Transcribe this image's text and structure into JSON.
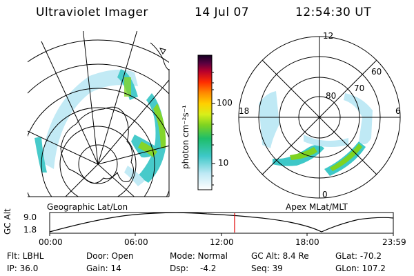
{
  "header": {
    "instrument": "Ultraviolet Imager",
    "date": "14 Jul 07",
    "time": "12:54:30 UT"
  },
  "colors": {
    "accent_line": "#e00000",
    "aurora_low": "#bfe9f5",
    "aurora_mid": "#3ec8c8",
    "aurora_high": "#7ed321"
  },
  "left_panel": {
    "label": "Geographic Lat/Lon"
  },
  "right_panel": {
    "label": "Apex MLat/MLT",
    "lat_labels": [
      "80",
      "70",
      "60"
    ],
    "mlt_labels": {
      "top": "12",
      "left": "18",
      "right": "6",
      "bottom": "0"
    }
  },
  "colorbar": {
    "unit": "photon cm⁻²s⁻¹",
    "ticks": [
      "100",
      "10"
    ]
  },
  "timeline": {
    "ylabel": "GC Alt",
    "y_ticks": [
      "9.0",
      "1.8"
    ],
    "x_ticks": [
      "00:00",
      "06:00",
      "12:00",
      "18:00",
      "23:59"
    ],
    "current_time": "12:54:30"
  },
  "footer": {
    "row1": {
      "filter": "Flt: LBHL",
      "door": "Door: Open",
      "mode": "Mode: Normal",
      "gc_alt": "GC Alt: 8.4 Re",
      "glat": "GLat: -70.2"
    },
    "row2": {
      "ip": "IP: 36.0",
      "gain": "Gain: 14",
      "dsp_label": "Dsp:",
      "dsp_value": "-4.2",
      "seq": "Seq: 39",
      "glon": "GLon: 107.2"
    }
  }
}
